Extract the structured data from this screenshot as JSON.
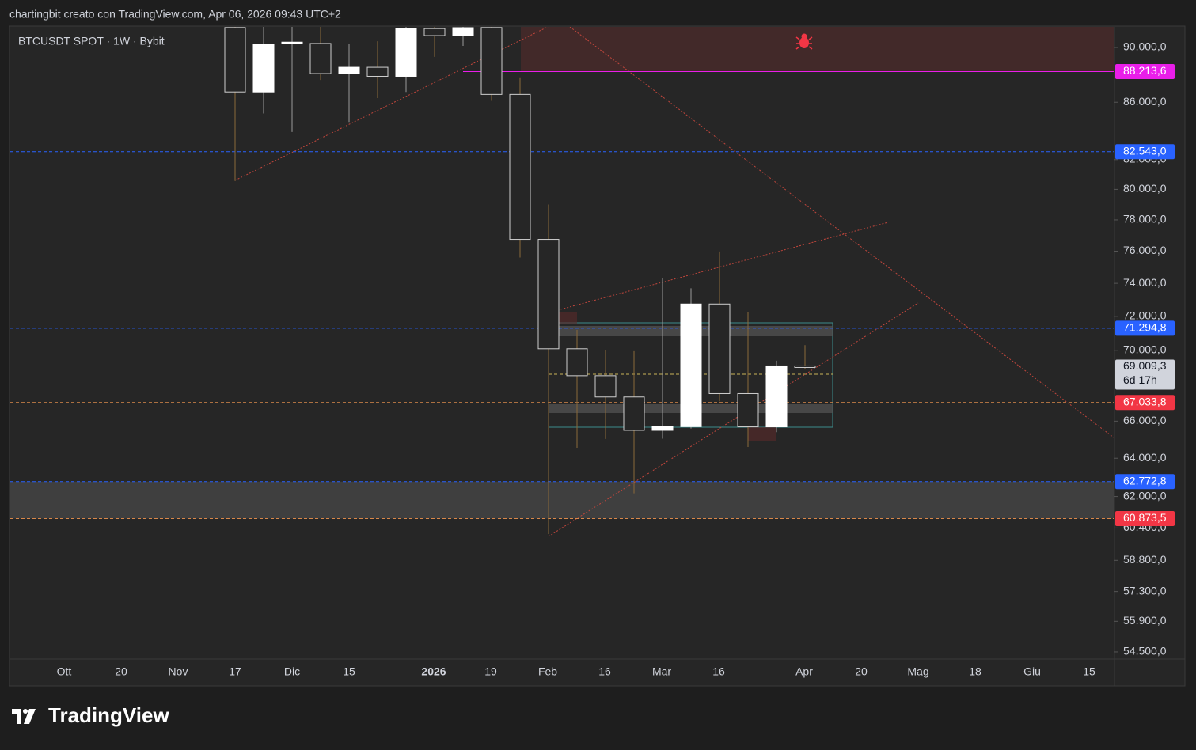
{
  "header": {
    "attribution": "chartingbit creato con TradingView.com, Apr 06, 2026 09:43 UTC+2"
  },
  "chart_data": {
    "type": "candlestick",
    "title": "BTCUSDT SPOT · 1W · Bybit",
    "open": [
      91500,
      86740,
      90300,
      90300,
      88070,
      88530,
      87870,
      91420,
      90890,
      91500,
      86560,
      76750,
      70090,
      68540,
      67340,
      65500,
      65700,
      72740,
      67530,
      65690,
      69100
    ],
    "high": [
      92500,
      92000,
      92500,
      91800,
      90300,
      90470,
      92000,
      92000,
      92500,
      93000,
      87800,
      79000,
      71200,
      70000,
      69950,
      74330,
      73700,
      75980,
      72230,
      69400,
      70300
    ],
    "low": [
      80560,
      85200,
      83900,
      87600,
      84600,
      86300,
      86740,
      89300,
      90120,
      86100,
      75600,
      60100,
      64560,
      65030,
      62160,
      65050,
      65600,
      67100,
      64600,
      65400,
      68900
    ],
    "close": [
      86740,
      90240,
      90400,
      88070,
      88530,
      87870,
      91420,
      90890,
      91490,
      86560,
      76750,
      70090,
      68540,
      67340,
      65500,
      65700,
      72740,
      67530,
      65690,
      69100,
      69009.3
    ],
    "up_color": "#ffffff",
    "down_color": "#262626",
    "log_scale": true,
    "ylim": [
      54213,
      91550
    ],
    "yticks": [
      {
        "value": 90000,
        "label": "90.000,0"
      },
      {
        "value": 86000,
        "label": "86.000,0"
      },
      {
        "value": 82000,
        "label": "82.000,0"
      },
      {
        "value": 80000,
        "label": "80.000,0"
      },
      {
        "value": 78000,
        "label": "78.000,0"
      },
      {
        "value": 76000,
        "label": "76.000,0"
      },
      {
        "value": 74000,
        "label": "74.000,0"
      },
      {
        "value": 72000,
        "label": "72.000,0"
      },
      {
        "value": 70000,
        "label": "70.000,0"
      },
      {
        "value": 66000,
        "label": "66.000,0"
      },
      {
        "value": 64000,
        "label": "64.000,0"
      },
      {
        "value": 62000,
        "label": "62.000,0"
      },
      {
        "value": 60400,
        "label": "60.400,0"
      },
      {
        "value": 58800,
        "label": "58.800,0"
      },
      {
        "value": 57300,
        "label": "57.300,0"
      },
      {
        "value": 55900,
        "label": "55.900,0"
      },
      {
        "value": 54500,
        "label": "54.500,0"
      }
    ],
    "xtick_labels": [
      "Ott",
      "20",
      "Nov",
      "17",
      "Dic",
      "15",
      "2026",
      "19",
      "Feb",
      "16",
      "Mar",
      "16",
      "Apr",
      "20",
      "Mag",
      "18",
      "Giu",
      "15"
    ],
    "levels": [
      {
        "value": 88213.6,
        "label": "88.213,6",
        "color": "#e91ee9",
        "style": "solid"
      },
      {
        "value": 82543.0,
        "label": "82.543,0",
        "color": "#2962ff",
        "style": "dashed"
      },
      {
        "value": 71294.8,
        "label": "71.294,8",
        "color": "#2962ff",
        "style": "dashed"
      },
      {
        "value": 69009.3,
        "label": "69.009,3",
        "color": "#d1d4dc",
        "style": "none",
        "sublabel": "6d 17h"
      },
      {
        "value": 67033.8,
        "label": "67.033,8",
        "color": "#f23645",
        "style": "dashed"
      },
      {
        "value": 62772.8,
        "label": "62.772,8",
        "color": "#2962ff",
        "style": "dashed"
      },
      {
        "value": 60873.5,
        "label": "60.873,5",
        "color": "#f23645",
        "style": "dashed"
      }
    ]
  },
  "footer": {
    "logo": "TradingView"
  }
}
